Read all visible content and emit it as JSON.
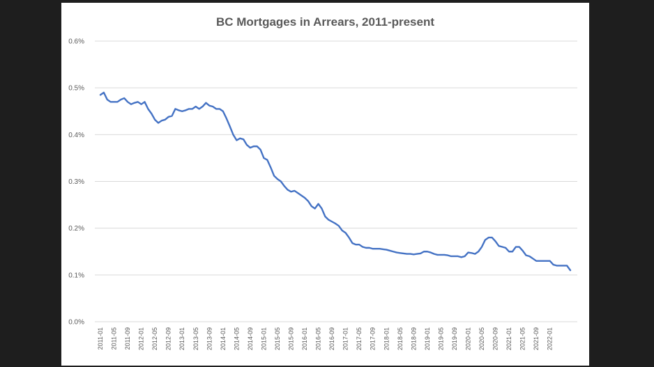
{
  "chart_data": {
    "type": "line",
    "title": "BC Mortgages in Arrears, 2011-present",
    "xlabel": "",
    "ylabel": "",
    "y_ticks": [
      "0.0%",
      "0.1%",
      "0.2%",
      "0.3%",
      "0.4%",
      "0.5%",
      "0.6%"
    ],
    "ylim": [
      0,
      0.6
    ],
    "x_tick_labels": [
      "2011-01",
      "2011-05",
      "2011-09",
      "2012-01",
      "2012-05",
      "2012-09",
      "2013-01",
      "2013-05",
      "2013-09",
      "2014-01",
      "2014-05",
      "2014-09",
      "2015-01",
      "2015-05",
      "2015-09",
      "2016-01",
      "2016-05",
      "2016-09",
      "2017-01",
      "2017-05",
      "2017-09",
      "2018-01",
      "2018-05",
      "2018-09",
      "2019-01",
      "2019-05",
      "2019-09",
      "2020-01",
      "2020-05",
      "2020-09",
      "2021-01",
      "2021-05",
      "2021-09",
      "2022-01"
    ],
    "grid": true,
    "line_color": "#4472C4",
    "series": [
      {
        "values": [
          0.485,
          0.49,
          0.475,
          0.47,
          0.47,
          0.47,
          0.475,
          0.478,
          0.47,
          0.465,
          0.468,
          0.47,
          0.465,
          0.47,
          0.455,
          0.445,
          0.432,
          0.425,
          0.43,
          0.432,
          0.438,
          0.44,
          0.455,
          0.452,
          0.45,
          0.452,
          0.455,
          0.455,
          0.46,
          0.455,
          0.46,
          0.468,
          0.462,
          0.46,
          0.455,
          0.455,
          0.45,
          0.435,
          0.418,
          0.4,
          0.388,
          0.392,
          0.39,
          0.378,
          0.372,
          0.375,
          0.375,
          0.368,
          0.35,
          0.346,
          0.33,
          0.312,
          0.305,
          0.3,
          0.29,
          0.282,
          0.278,
          0.28,
          0.275,
          0.27,
          0.265,
          0.258,
          0.247,
          0.242,
          0.252,
          0.242,
          0.225,
          0.218,
          0.214,
          0.21,
          0.205,
          0.195,
          0.19,
          0.18,
          0.168,
          0.165,
          0.165,
          0.16,
          0.158,
          0.158,
          0.156,
          0.156,
          0.156,
          0.155,
          0.154,
          0.152,
          0.15,
          0.148,
          0.147,
          0.146,
          0.145,
          0.145,
          0.144,
          0.145,
          0.146,
          0.15,
          0.15,
          0.148,
          0.145,
          0.143,
          0.143,
          0.143,
          0.142,
          0.14,
          0.14,
          0.14,
          0.138,
          0.14,
          0.148,
          0.147,
          0.145,
          0.15,
          0.16,
          0.175,
          0.18,
          0.18,
          0.172,
          0.162,
          0.16,
          0.158,
          0.15,
          0.15,
          0.16,
          0.16,
          0.152,
          0.142,
          0.14,
          0.135,
          0.13,
          0.13,
          0.13,
          0.13,
          0.13,
          0.122,
          0.12,
          0.12,
          0.12,
          0.12,
          0.11
        ]
      }
    ]
  }
}
